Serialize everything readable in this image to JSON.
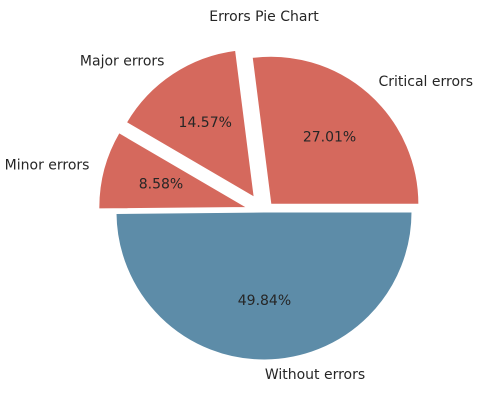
{
  "chart_data": {
    "type": "pie",
    "title": "Errors Pie Chart",
    "categories": [
      "Critical errors",
      "Major errors",
      "Minor errors",
      "Without errors"
    ],
    "values": [
      27.01,
      14.57,
      8.58,
      49.84
    ],
    "value_labels": [
      "27.01%",
      "14.57%",
      "8.58%",
      "49.84%"
    ],
    "colors": [
      "#d5695d",
      "#d5695d",
      "#d5695d",
      "#5d8ca8"
    ]
  }
}
